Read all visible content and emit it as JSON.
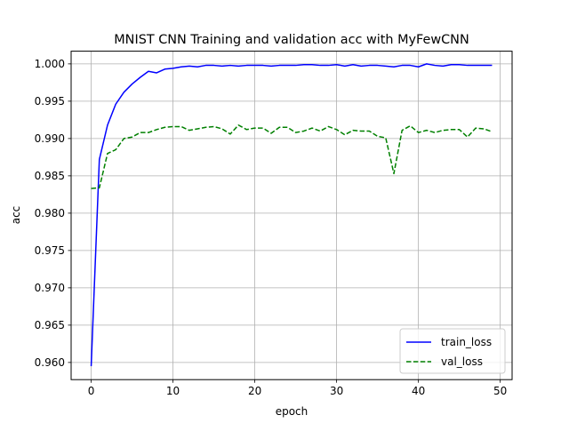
{
  "chart_data": {
    "type": "line",
    "title": "MNIST CNN Training and validation acc with MyFewCNN",
    "xlabel": "epoch",
    "ylabel": "acc",
    "xlim": [
      -2.45,
      51.45
    ],
    "ylim": [
      0.9577,
      1.0017
    ],
    "grid": true,
    "legend_position": "lower-right",
    "x_ticks": [
      0,
      10,
      20,
      30,
      40,
      50
    ],
    "x_tick_labels": [
      "0",
      "10",
      "20",
      "30",
      "40",
      "50"
    ],
    "y_ticks": [
      0.96,
      0.965,
      0.97,
      0.975,
      0.98,
      0.985,
      0.99,
      0.995,
      1.0
    ],
    "y_tick_labels": [
      "0.960",
      "0.965",
      "0.970",
      "0.975",
      "0.980",
      "0.985",
      "0.990",
      "0.995",
      "1.000"
    ],
    "x": [
      0,
      1,
      2,
      3,
      4,
      5,
      6,
      7,
      8,
      9,
      10,
      11,
      12,
      13,
      14,
      15,
      16,
      17,
      18,
      19,
      20,
      21,
      22,
      23,
      24,
      25,
      26,
      27,
      28,
      29,
      30,
      31,
      32,
      33,
      34,
      35,
      36,
      37,
      38,
      39,
      40,
      41,
      42,
      43,
      44,
      45,
      46,
      47,
      48,
      49
    ],
    "series": [
      {
        "name": "train_loss",
        "color": "#0000ff",
        "style": "solid",
        "values": [
          0.9595,
          0.9872,
          0.9918,
          0.9946,
          0.9962,
          0.9973,
          0.9982,
          0.999,
          0.9988,
          0.9993,
          0.9994,
          0.9996,
          0.9997,
          0.9996,
          0.9998,
          0.9998,
          0.9997,
          0.9998,
          0.9997,
          0.9998,
          0.9998,
          0.9998,
          0.9997,
          0.9998,
          0.9998,
          0.9998,
          0.9999,
          0.9999,
          0.9998,
          0.9998,
          0.9999,
          0.9997,
          0.9999,
          0.9997,
          0.9998,
          0.9998,
          0.9997,
          0.9996,
          0.9998,
          0.9998,
          0.9996,
          1.0,
          0.9998,
          0.9997,
          0.9999,
          0.9999,
          0.9998,
          0.9998,
          0.9998,
          0.9998
        ]
      },
      {
        "name": "val_loss",
        "color": "#008000",
        "style": "dashed",
        "values": [
          0.9833,
          0.9834,
          0.988,
          0.9885,
          0.99,
          0.9902,
          0.9908,
          0.9908,
          0.9912,
          0.9915,
          0.9916,
          0.9916,
          0.9911,
          0.9913,
          0.9915,
          0.9916,
          0.9913,
          0.9906,
          0.9918,
          0.9912,
          0.9914,
          0.9914,
          0.9907,
          0.9915,
          0.9915,
          0.9908,
          0.991,
          0.9914,
          0.991,
          0.9916,
          0.9912,
          0.9905,
          0.9911,
          0.991,
          0.991,
          0.9903,
          0.9901,
          0.9853,
          0.9911,
          0.9917,
          0.9908,
          0.9911,
          0.9908,
          0.9911,
          0.9912,
          0.9912,
          0.9902,
          0.9914,
          0.9913,
          0.9909
        ]
      }
    ]
  }
}
